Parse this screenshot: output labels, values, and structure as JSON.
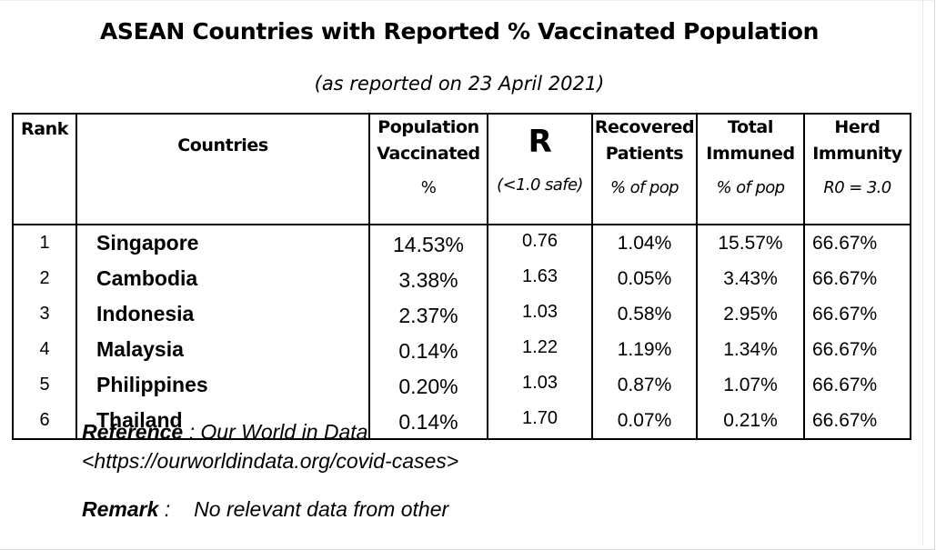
{
  "title": "ASEAN Countries with Reported % Vaccinated Population",
  "subtitle": "(as reported on 23 April 2021)",
  "table": {
    "headers": {
      "rank": "Rank",
      "countries": "Countries",
      "vaccinated": {
        "line1": "Population",
        "line2": "Vaccinated",
        "unit": "%"
      },
      "r": {
        "label": "R",
        "unit": "(<1.0 safe)"
      },
      "recovered": {
        "line1": "Recovered",
        "line2": "Patients",
        "unit": "% of pop"
      },
      "immuned": {
        "line1": "Total",
        "line2": "Immuned",
        "unit": "% of pop"
      },
      "herd": {
        "line1": "Herd",
        "line2": "Immunity",
        "unit": "R0 = 3.0"
      }
    },
    "rows": [
      {
        "rank": "1",
        "country": "Singapore",
        "vaccinated": "14.53%",
        "r": "0.76",
        "recovered": "1.04%",
        "immuned": "15.57%",
        "herd": "66.67%"
      },
      {
        "rank": "2",
        "country": "Cambodia",
        "vaccinated": "3.38%",
        "r": "1.63",
        "recovered": "0.05%",
        "immuned": "3.43%",
        "herd": "66.67%"
      },
      {
        "rank": "3",
        "country": "Indonesia",
        "vaccinated": "2.37%",
        "r": "1.03",
        "recovered": "0.58%",
        "immuned": "2.95%",
        "herd": "66.67%"
      },
      {
        "rank": "4",
        "country": "Malaysia",
        "vaccinated": "0.14%",
        "r": "1.22",
        "recovered": "1.19%",
        "immuned": "1.34%",
        "herd": "66.67%"
      },
      {
        "rank": "5",
        "country": "Philippines",
        "vaccinated": "0.20%",
        "r": "1.03",
        "recovered": "0.87%",
        "immuned": "1.07%",
        "herd": "66.67%"
      },
      {
        "rank": "6",
        "country": "Thailand",
        "vaccinated": "0.14%",
        "r": "1.70",
        "recovered": "0.07%",
        "immuned": "0.21%",
        "herd": "66.67%"
      }
    ]
  },
  "reference": {
    "label": "Reference",
    "separator": " : ",
    "source": "Our World in Data",
    "url": "<https://ourworldindata.org/covid-cases>"
  },
  "remark": {
    "label": "Remark",
    "separator": " :",
    "text": "No relevant data from other"
  }
}
